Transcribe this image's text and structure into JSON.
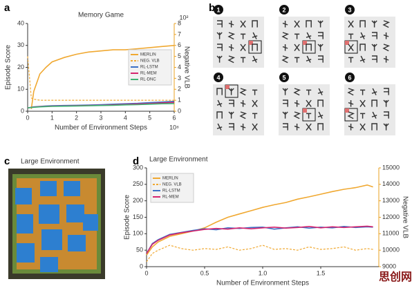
{
  "panels": {
    "labels": [
      "a",
      "b",
      "c",
      "d"
    ],
    "c_title": "Large Environment",
    "steps": [
      "1",
      "2",
      "3",
      "4",
      "5",
      "6"
    ],
    "watermark": "思创网"
  },
  "chart_data": [
    {
      "type": "line",
      "title": "Memory Game",
      "xlabel": "Number of Environment Steps",
      "ylabel": "Episode Score",
      "y2label": "Negative VLB",
      "x_multiplier": "10⁸",
      "y2_multiplier": "10²",
      "x": [
        0,
        0.15,
        0.25,
        0.5,
        0.75,
        1,
        1.5,
        2,
        2.5,
        3,
        3.5,
        4,
        4.5,
        5,
        5.5,
        6
      ],
      "xlim": [
        0,
        6
      ],
      "xticks": [
        0,
        1,
        2,
        3,
        4,
        5,
        6
      ],
      "ylim": [
        0,
        40
      ],
      "yticks": [
        0,
        10,
        20,
        30,
        40
      ],
      "y2lim": [
        0,
        8
      ],
      "y2ticks": [
        0,
        1,
        2,
        3,
        4,
        5,
        6,
        7,
        8
      ],
      "legend": "right",
      "series": [
        {
          "name": "MERLIN",
          "color": "#f0a830",
          "values": [
            null,
            1,
            9,
            17,
            20,
            22.5,
            24.5,
            26,
            27,
            27.5,
            28,
            28,
            28.5,
            29,
            29.5,
            30
          ]
        },
        {
          "name": "NEG. VLB",
          "color": "#f0a830",
          "dashed": true,
          "axis": "y2",
          "values": [
            5,
            1.2,
            1.1,
            1.0,
            1.0,
            1.0,
            1.0,
            1.0,
            1.0,
            1.0,
            1.0,
            1.0,
            1.0,
            1.0,
            1.0,
            1.0
          ]
        },
        {
          "name": "RL-LSTM",
          "color": "#3a6fc4",
          "values": [
            1.5,
            1.8,
            2,
            2.2,
            2.4,
            2.5,
            2.6,
            2.7,
            2.8,
            3,
            3.2,
            3.4,
            3.6,
            3.9,
            4.2,
            4.5
          ]
        },
        {
          "name": "RL-MEM",
          "color": "#d6246e",
          "values": [
            1.5,
            1.7,
            1.9,
            2.1,
            2.2,
            2.3,
            2.4,
            2.5,
            2.6,
            2.7,
            2.9,
            3.1,
            3.3,
            3.5,
            3.8,
            4
          ]
        },
        {
          "name": "RL-DNC",
          "color": "#3cb371",
          "values": [
            1.5,
            1.7,
            1.8,
            2,
            2.1,
            2.2,
            2.3,
            2.4,
            2.5,
            2.6,
            2.7,
            2.9,
            3,
            3.2,
            3.4,
            3.5
          ]
        }
      ]
    },
    {
      "type": "line",
      "title": "Large Environment",
      "xlabel": "Number of Environment Steps",
      "ylabel": "Episode Score",
      "y2label": "Negative VLB",
      "x": [
        0,
        0.05,
        0.1,
        0.2,
        0.3,
        0.4,
        0.5,
        0.6,
        0.7,
        0.8,
        0.9,
        1.0,
        1.1,
        1.2,
        1.3,
        1.4,
        1.5,
        1.6,
        1.7,
        1.8,
        1.9,
        1.95
      ],
      "xlim": [
        0,
        2
      ],
      "xticks": [
        0,
        0.5,
        {
          "value": 1,
          "label": "1.0"
        },
        1.5
      ],
      "ylim": [
        0,
        300
      ],
      "yticks": [
        0,
        50,
        100,
        150,
        200,
        250,
        300
      ],
      "y2lim": [
        9000,
        15000
      ],
      "y2ticks": [
        9000,
        10000,
        11000,
        12000,
        13000,
        14000,
        15000
      ],
      "legend": "upper left",
      "series": [
        {
          "name": "MERLIN",
          "color": "#f0a830",
          "values": [
            35,
            60,
            75,
            92,
            100,
            108,
            118,
            135,
            150,
            160,
            170,
            180,
            188,
            195,
            205,
            212,
            220,
            228,
            235,
            240,
            248,
            242
          ]
        },
        {
          "name": "NEG. VLB",
          "color": "#f0a830",
          "dashed": true,
          "axis": "y2",
          "values": [
            9300,
            9800,
            10000,
            10300,
            10100,
            10000,
            10100,
            10050,
            10200,
            10000,
            10100,
            10300,
            10050,
            10100,
            10000,
            10200,
            10050,
            10100,
            10200,
            10000,
            10100,
            10050
          ]
        },
        {
          "name": "RL-LSTM",
          "color": "#3a6fc4",
          "values": [
            40,
            70,
            82,
            98,
            104,
            110,
            115,
            112,
            118,
            116,
            119,
            120,
            114,
            118,
            121,
            117,
            120,
            118,
            122,
            119,
            121,
            120
          ]
        },
        {
          "name": "RL-MEM",
          "color": "#d6246e",
          "values": [
            40,
            68,
            80,
            96,
            103,
            108,
            113,
            116,
            114,
            118,
            115,
            118,
            120,
            117,
            119,
            122,
            118,
            121,
            119,
            121,
            123,
            121
          ]
        }
      ]
    }
  ]
}
